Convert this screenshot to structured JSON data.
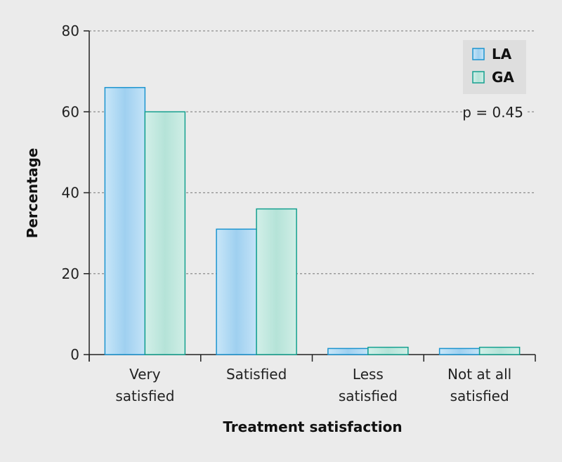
{
  "chart_data": {
    "type": "bar",
    "title": "",
    "xlabel": "Treatment satisfaction",
    "ylabel": "Percentage",
    "ylim": [
      0,
      80
    ],
    "yticks": [
      0,
      20,
      40,
      60,
      80
    ],
    "grid": true,
    "categories": [
      [
        "Very",
        "satisfied"
      ],
      [
        "Satisfied"
      ],
      [
        "Less",
        "satisfied"
      ],
      [
        "Not at all",
        "satisfied"
      ]
    ],
    "series": [
      {
        "name": "LA",
        "values": [
          66,
          31,
          1.5,
          1.5
        ],
        "color": "#9fd0f0",
        "edge": "#1b94cf"
      },
      {
        "name": "GA",
        "values": [
          60,
          36,
          1.8,
          1.8
        ],
        "color": "#b5e3d8",
        "edge": "#14a08f"
      }
    ],
    "legend_position": "top-right",
    "annotation": "p = 0.45"
  }
}
